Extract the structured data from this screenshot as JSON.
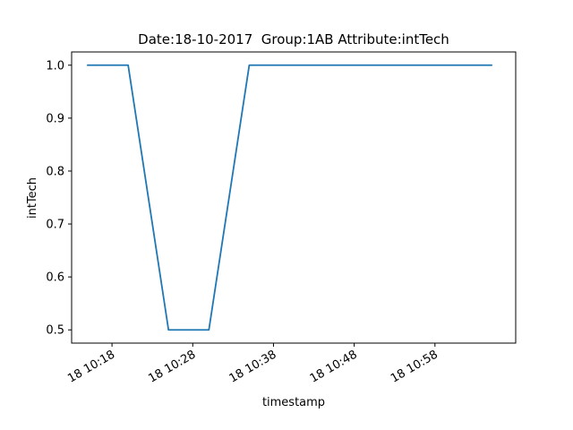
{
  "chart_data": {
    "type": "line",
    "title": "Date:18-10-2017  Group:1AB Attribute:intTech",
    "xlabel": "timestamp",
    "ylabel": "intTech",
    "x_axis_type": "time",
    "x_tick_values": [
      "2017-10-18 10:18",
      "2017-10-18 10:28",
      "2017-10-18 10:38",
      "2017-10-18 10:48",
      "2017-10-18 10:58"
    ],
    "x_tick_labels": [
      "18 10:18",
      "18 10:28",
      "18 10:38",
      "18 10:48",
      "18 10:58"
    ],
    "y_ticks": [
      0.5,
      0.6,
      0.7,
      0.8,
      0.9,
      1.0
    ],
    "y_tick_labels": [
      "0.5",
      "0.6",
      "0.7",
      "0.8",
      "0.9",
      "1.0"
    ],
    "xlim": [
      "2017-10-18 10:13",
      "2017-10-18 11:08"
    ],
    "ylim": [
      0.475,
      1.025
    ],
    "grid": false,
    "series": [
      {
        "color": "#1f77b4",
        "x": [
          "2017-10-18 10:15",
          "2017-10-18 10:20",
          "2017-10-18 10:25",
          "2017-10-18 10:30",
          "2017-10-18 10:35",
          "2017-10-18 10:40",
          "2017-10-18 10:45",
          "2017-10-18 10:50",
          "2017-10-18 10:55",
          "2017-10-18 11:00",
          "2017-10-18 11:05"
        ],
        "y": [
          1.0,
          1.0,
          0.5,
          0.5,
          1.0,
          1.0,
          1.0,
          1.0,
          1.0,
          1.0,
          1.0
        ]
      }
    ]
  }
}
